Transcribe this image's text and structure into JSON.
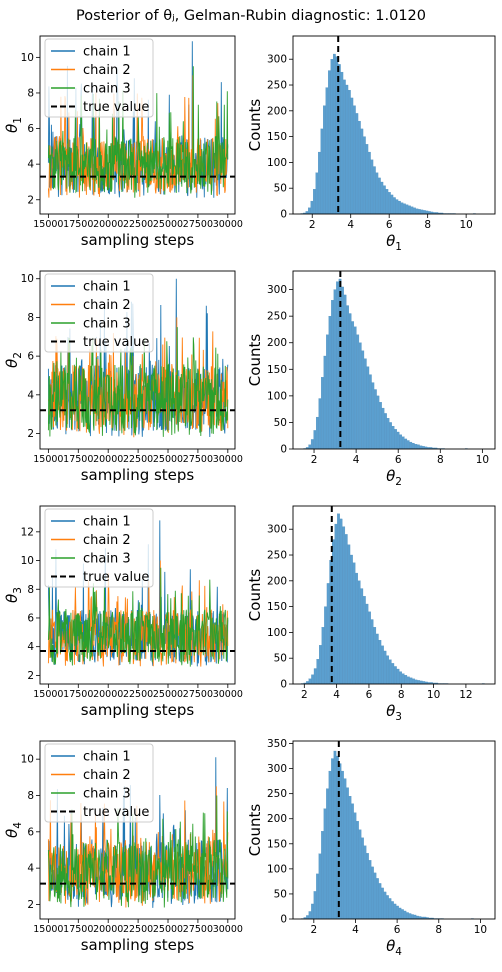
{
  "figure": {
    "title": "Posterior of θⱼ, Gelman-Rubin diagnostic: 1.0120"
  },
  "colors": {
    "chain_1": "#1f77b4",
    "chain_2": "#ff7f0e",
    "chain_3": "#2ca02c",
    "true_value": "#000000",
    "histogram": "#5b9fcf"
  },
  "chart_data": [
    {
      "type": "line",
      "panel": "trace",
      "param": "1",
      "xlabel": "sampling steps",
      "ylabel": "θ1",
      "xlim": [
        14300,
        30600
      ],
      "ylim": [
        1.2,
        11.2
      ],
      "xticks": [
        15000,
        17500,
        20000,
        22500,
        25000,
        27500,
        30000
      ],
      "yticks": [
        2,
        4,
        6,
        8,
        10
      ],
      "legend": "top-left",
      "legend_labels": [
        "chain 1",
        "chain 2",
        "chain 3",
        "true value"
      ],
      "true_value": 3.3,
      "series_summary": [
        {
          "name": "chain 1",
          "x_range": [
            15000,
            30000
          ],
          "typical": [
            2.5,
            5.5
          ],
          "peak_max": 10.9
        },
        {
          "name": "chain 2",
          "x_range": [
            15000,
            30000
          ],
          "typical": [
            2.5,
            5.5
          ],
          "peak_max": 9.0
        },
        {
          "name": "chain 3",
          "x_range": [
            15000,
            30000
          ],
          "typical": [
            2.5,
            5.5
          ],
          "peak_max": 9.5
        }
      ]
    },
    {
      "type": "bar",
      "panel": "histogram",
      "param": "1",
      "xlabel": "θ1",
      "ylabel": "Counts",
      "xlim": [
        1.0,
        11.5
      ],
      "ylim": [
        0,
        345
      ],
      "xticks": [
        2,
        4,
        6,
        8,
        10
      ],
      "yticks": [
        0,
        50,
        100,
        150,
        200,
        250,
        300
      ],
      "true_value": 3.35,
      "bin_start": 1.4,
      "bin_width": 0.13,
      "counts": [
        1,
        2,
        5,
        12,
        25,
        48,
        80,
        120,
        165,
        210,
        245,
        278,
        300,
        310,
        305,
        290,
        275,
        260,
        250,
        240,
        225,
        210,
        195,
        180,
        165,
        150,
        135,
        120,
        105,
        92,
        80,
        70,
        62,
        55,
        48,
        42,
        37,
        32,
        28,
        25,
        22,
        20,
        18,
        16,
        14,
        12,
        10,
        9,
        8,
        7,
        6,
        5,
        4,
        3,
        3,
        2,
        2,
        1,
        1,
        1,
        1,
        1,
        0,
        0,
        0,
        0,
        0,
        0,
        0,
        1
      ]
    },
    {
      "type": "line",
      "panel": "trace",
      "param": "2",
      "xlabel": "sampling steps",
      "ylabel": "θ2",
      "xlim": [
        14300,
        30600
      ],
      "ylim": [
        1.2,
        10.4
      ],
      "xticks": [
        15000,
        17500,
        20000,
        22500,
        25000,
        27500,
        30000
      ],
      "yticks": [
        2,
        4,
        6,
        8,
        10
      ],
      "legend": "top-left",
      "legend_labels": [
        "chain 1",
        "chain 2",
        "chain 3",
        "true value"
      ],
      "true_value": 3.2,
      "series_summary": [
        {
          "name": "chain 1",
          "x_range": [
            15000,
            30000
          ],
          "typical": [
            2.2,
            5.5
          ],
          "peak_max": 10.0
        },
        {
          "name": "chain 2",
          "x_range": [
            15000,
            30000
          ],
          "typical": [
            2.2,
            5.5
          ],
          "peak_max": 8.0
        },
        {
          "name": "chain 3",
          "x_range": [
            15000,
            30000
          ],
          "typical": [
            2.2,
            5.5
          ],
          "peak_max": 7.5
        }
      ]
    },
    {
      "type": "bar",
      "panel": "histogram",
      "param": "2",
      "xlabel": "θ2",
      "ylabel": "Counts",
      "xlim": [
        1.0,
        10.6
      ],
      "ylim": [
        0,
        335
      ],
      "xticks": [
        2,
        4,
        6,
        8,
        10
      ],
      "yticks": [
        0,
        50,
        100,
        150,
        200,
        250,
        300
      ],
      "true_value": 3.25,
      "bin_start": 1.5,
      "bin_width": 0.12,
      "counts": [
        1,
        3,
        8,
        18,
        35,
        60,
        95,
        135,
        175,
        215,
        250,
        280,
        300,
        315,
        320,
        305,
        290,
        270,
        255,
        240,
        230,
        215,
        200,
        185,
        170,
        155,
        140,
        125,
        112,
        100,
        88,
        77,
        67,
        58,
        50,
        43,
        37,
        32,
        27,
        23,
        19,
        16,
        13,
        11,
        9,
        8,
        6,
        5,
        4,
        3,
        3,
        2,
        2,
        1,
        1,
        1,
        0,
        0,
        0,
        0,
        0,
        0,
        0,
        0,
        1
      ]
    },
    {
      "type": "line",
      "panel": "trace",
      "param": "3",
      "xlabel": "sampling steps",
      "ylabel": "θ3",
      "xlim": [
        14300,
        30600
      ],
      "ylim": [
        1.4,
        13.8
      ],
      "xticks": [
        15000,
        17500,
        20000,
        22500,
        25000,
        27500,
        30000
      ],
      "yticks": [
        2,
        4,
        6,
        8,
        10,
        12
      ],
      "legend": "top-left",
      "legend_labels": [
        "chain 1",
        "chain 2",
        "chain 3",
        "true value"
      ],
      "true_value": 3.7,
      "series_summary": [
        {
          "name": "chain 1",
          "x_range": [
            15000,
            30000
          ],
          "typical": [
            3.0,
            6.5
          ],
          "peak_max": 12.8
        },
        {
          "name": "chain 2",
          "x_range": [
            15000,
            30000
          ],
          "typical": [
            3.0,
            6.5
          ],
          "peak_max": 10.0
        },
        {
          "name": "chain 3",
          "x_range": [
            15000,
            30000
          ],
          "typical": [
            3.0,
            6.5
          ],
          "peak_max": 9.5
        }
      ]
    },
    {
      "type": "bar",
      "panel": "histogram",
      "param": "3",
      "xlabel": "θ3",
      "ylabel": "Counts",
      "xlim": [
        1.3,
        13.8
      ],
      "ylim": [
        0,
        345
      ],
      "xticks": [
        2,
        4,
        6,
        8,
        10,
        12
      ],
      "yticks": [
        0,
        50,
        100,
        150,
        200,
        250,
        300
      ],
      "true_value": 3.7,
      "bin_start": 1.8,
      "bin_width": 0.16,
      "counts": [
        1,
        2,
        5,
        10,
        18,
        30,
        48,
        75,
        110,
        150,
        195,
        240,
        280,
        310,
        330,
        320,
        305,
        290,
        270,
        250,
        235,
        215,
        200,
        185,
        170,
        155,
        140,
        125,
        110,
        97,
        85,
        74,
        64,
        55,
        47,
        40,
        34,
        29,
        24,
        20,
        17,
        14,
        12,
        10,
        8,
        7,
        6,
        5,
        4,
        3,
        3,
        2,
        2,
        1,
        1,
        1,
        1,
        0,
        0,
        0,
        0,
        0,
        0,
        0,
        0,
        0,
        0,
        0,
        0,
        0,
        1
      ]
    },
    {
      "type": "line",
      "panel": "trace",
      "param": "4",
      "xlabel": "sampling steps",
      "ylabel": "θ4",
      "xlim": [
        14300,
        30600
      ],
      "ylim": [
        1.2,
        11.0
      ],
      "xticks": [
        15000,
        17500,
        20000,
        22500,
        25000,
        27500,
        30000
      ],
      "yticks": [
        2,
        4,
        6,
        8,
        10
      ],
      "legend": "top-left",
      "legend_labels": [
        "chain 1",
        "chain 2",
        "chain 3",
        "true value"
      ],
      "true_value": 3.15,
      "series_summary": [
        {
          "name": "chain 1",
          "x_range": [
            15000,
            30000
          ],
          "typical": [
            2.2,
            5.5
          ],
          "peak_max": 10.1
        },
        {
          "name": "chain 2",
          "x_range": [
            15000,
            30000
          ],
          "typical": [
            2.2,
            5.5
          ],
          "peak_max": 8.5
        },
        {
          "name": "chain 3",
          "x_range": [
            15000,
            30000
          ],
          "typical": [
            2.2,
            5.5
          ],
          "peak_max": 8.0
        }
      ]
    },
    {
      "type": "bar",
      "panel": "histogram",
      "param": "4",
      "xlabel": "θ4",
      "ylabel": "Counts",
      "xlim": [
        1.0,
        10.7
      ],
      "ylim": [
        0,
        355
      ],
      "xticks": [
        2,
        4,
        6,
        8,
        10
      ],
      "yticks": [
        0,
        50,
        100,
        150,
        200,
        250,
        300,
        350
      ],
      "true_value": 3.2,
      "bin_start": 1.4,
      "bin_width": 0.12,
      "counts": [
        1,
        3,
        7,
        15,
        30,
        55,
        90,
        130,
        175,
        220,
        260,
        295,
        320,
        335,
        325,
        310,
        295,
        280,
        262,
        245,
        230,
        212,
        195,
        178,
        162,
        146,
        131,
        117,
        104,
        92,
        81,
        71,
        62,
        54,
        47,
        41,
        35,
        30,
        26,
        22,
        19,
        16,
        13,
        11,
        9,
        8,
        6,
        5,
        4,
        4,
        3,
        2,
        2,
        1,
        1,
        1,
        1,
        0,
        0,
        0,
        0,
        0,
        0,
        0,
        0,
        0,
        0,
        0,
        1
      ]
    }
  ]
}
